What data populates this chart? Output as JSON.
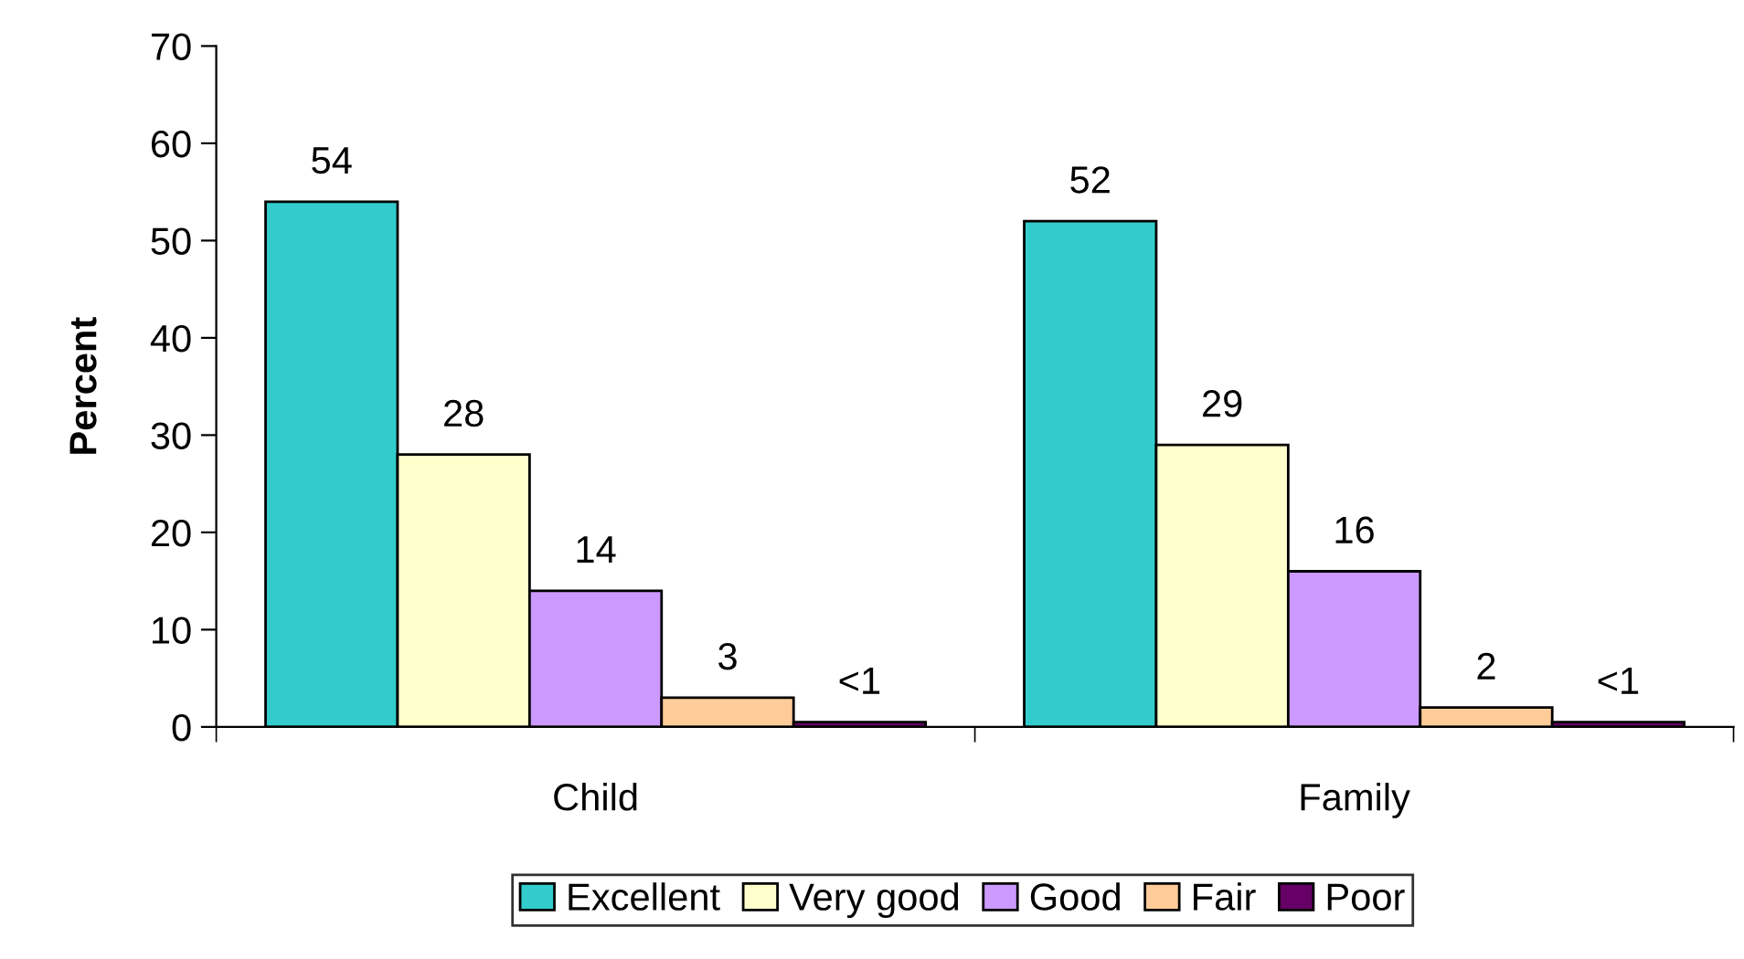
{
  "chart_data": {
    "type": "bar",
    "ylabel": "Percent",
    "categories": [
      "Child",
      "Family"
    ],
    "series": [
      {
        "name": "Excellent",
        "color": "#33cccc",
        "values": [
          54,
          52
        ],
        "value_labels": [
          "54",
          "52"
        ]
      },
      {
        "name": "Very good",
        "color": "#ffffcc",
        "values": [
          28,
          29
        ],
        "value_labels": [
          "28",
          "29"
        ]
      },
      {
        "name": "Good",
        "color": "#cc99ff",
        "values": [
          14,
          16
        ],
        "value_labels": [
          "14",
          "16"
        ]
      },
      {
        "name": "Fair",
        "color": "#ffcc99",
        "values": [
          3,
          2
        ],
        "value_labels": [
          "3",
          "2"
        ]
      },
      {
        "name": "Poor",
        "color": "#660066",
        "values": [
          0.5,
          0.5
        ],
        "value_labels": [
          "<1",
          "<1"
        ]
      }
    ],
    "ylim": [
      0,
      70
    ],
    "yticks": [
      0,
      10,
      20,
      30,
      40,
      50,
      60,
      70
    ],
    "grid": false,
    "legend": "bottom"
  }
}
